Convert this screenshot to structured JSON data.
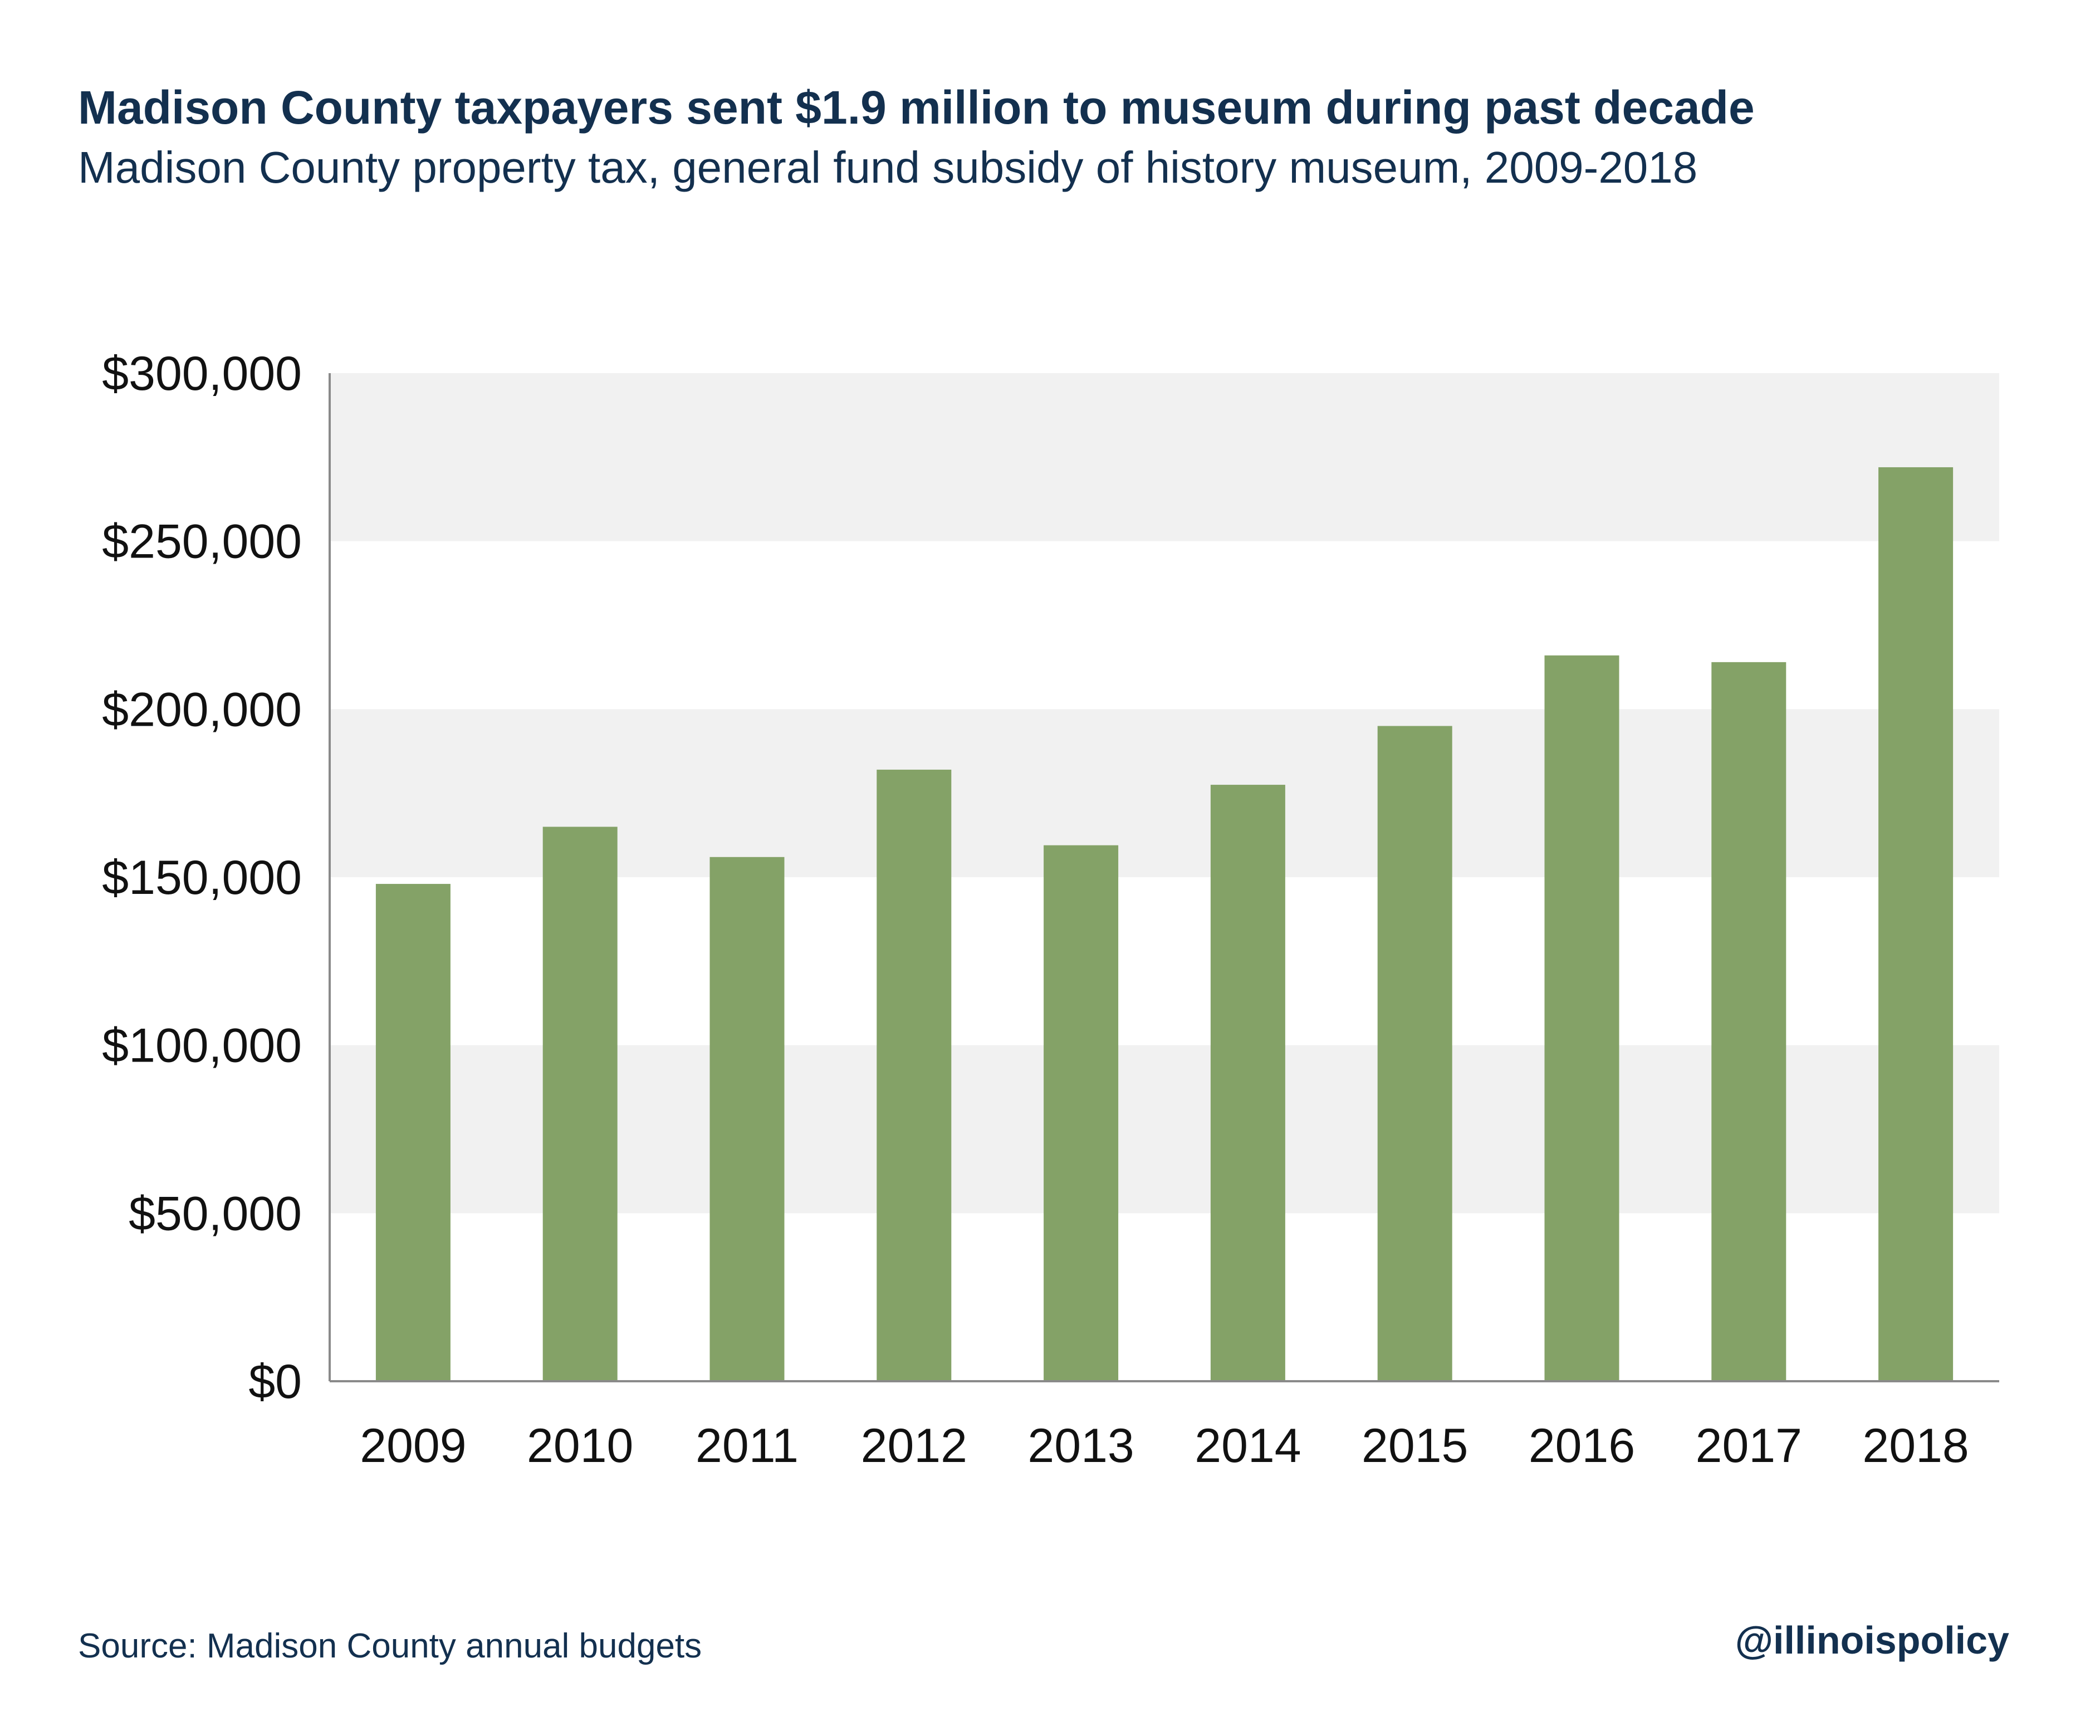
{
  "header": {
    "title": "Madison County taxpayers sent $1.9 million to museum during past decade",
    "subtitle": "Madison County property tax, general fund subsidy of history museum, 2009-2018"
  },
  "footer": {
    "source": "Source: Madison County annual budgets",
    "handle": "@illinoispolicy"
  },
  "colors": {
    "bar": "#84a267",
    "band": "#f1f1f1",
    "text": "#13304f",
    "axis": "#8a8a8a"
  },
  "chart_data": {
    "type": "bar",
    "title": "Madison County taxpayers sent $1.9 million to museum during past decade",
    "subtitle": "Madison County property tax, general fund subsidy of history museum, 2009-2018",
    "categories": [
      "2009",
      "2010",
      "2011",
      "2012",
      "2013",
      "2014",
      "2015",
      "2016",
      "2017",
      "2018"
    ],
    "values": [
      148000,
      165000,
      156000,
      182000,
      159500,
      177500,
      195000,
      216000,
      214000,
      272000
    ],
    "ylim": [
      0,
      300000
    ],
    "yticks": [
      0,
      50000,
      100000,
      150000,
      200000,
      250000,
      300000
    ],
    "ytick_labels": [
      "$0",
      "$50,000",
      "$100,000",
      "$150,000",
      "$200,000",
      "$250,000",
      "$300,000"
    ],
    "grid": "alternating horizontal bands",
    "legend": "none"
  }
}
